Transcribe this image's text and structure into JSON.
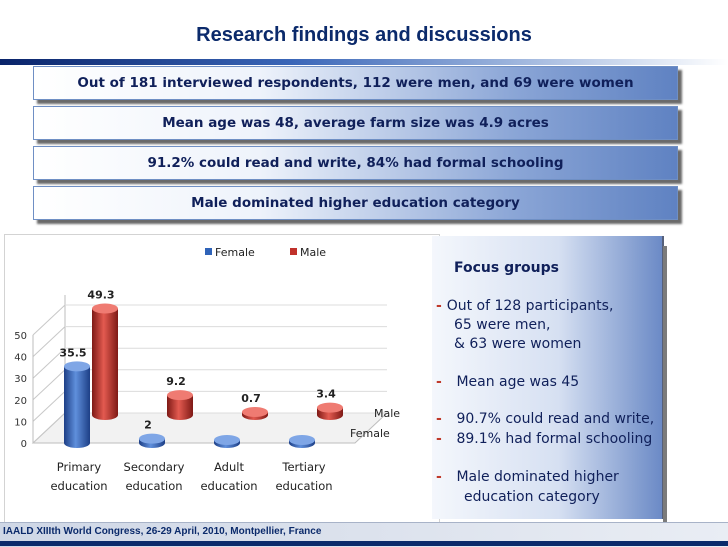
{
  "slide": {
    "title": "Research findings and discussions",
    "banners": [
      "Out of 181 interviewed respondents, 112 were men, and 69 were women",
      "Mean age was 48,   average farm size was 4.9 acres",
      "91.2% could read and write, 84% had formal schooling",
      "Male dominated higher education category"
    ],
    "footer": "IAALD XIIIth World Congress, 26-29 April, 2010, Montpellier, France"
  },
  "focus": {
    "title": "Focus groups",
    "lines": [
      "Out of 128 participants,",
      "65 were men,",
      "& 63 were women",
      "Mean age was 45",
      "90.7% could read and write,",
      "89.1% had formal schooling",
      "Male dominated higher",
      "education category"
    ]
  },
  "chart_data": {
    "type": "bar",
    "categories": [
      "Primary education",
      "Secondary education",
      "Adult education",
      "Tertiary education"
    ],
    "category_lines": [
      [
        "Primary",
        "education"
      ],
      [
        "Secondary",
        "education"
      ],
      [
        "Adult",
        "education"
      ],
      [
        "Tertiary",
        "education"
      ]
    ],
    "series": [
      {
        "name": "Female",
        "values": [
          35.5,
          2,
          0,
          0
        ],
        "labels": [
          "35.5",
          "2",
          "",
          ""
        ],
        "color": "#2f63b8"
      },
      {
        "name": "Male",
        "values": [
          49.3,
          9.2,
          0.7,
          3.4
        ],
        "labels": [
          "49.3",
          "9.2",
          "0.7",
          "3.4"
        ],
        "color": "#c0312b"
      }
    ],
    "depth_labels": [
      "Male",
      "Female"
    ],
    "y_ticks": [
      "0",
      "10",
      "20",
      "30",
      "40",
      "50"
    ],
    "ylim": [
      0,
      50
    ],
    "legend_position": "top",
    "three_d": true,
    "grid": true
  }
}
